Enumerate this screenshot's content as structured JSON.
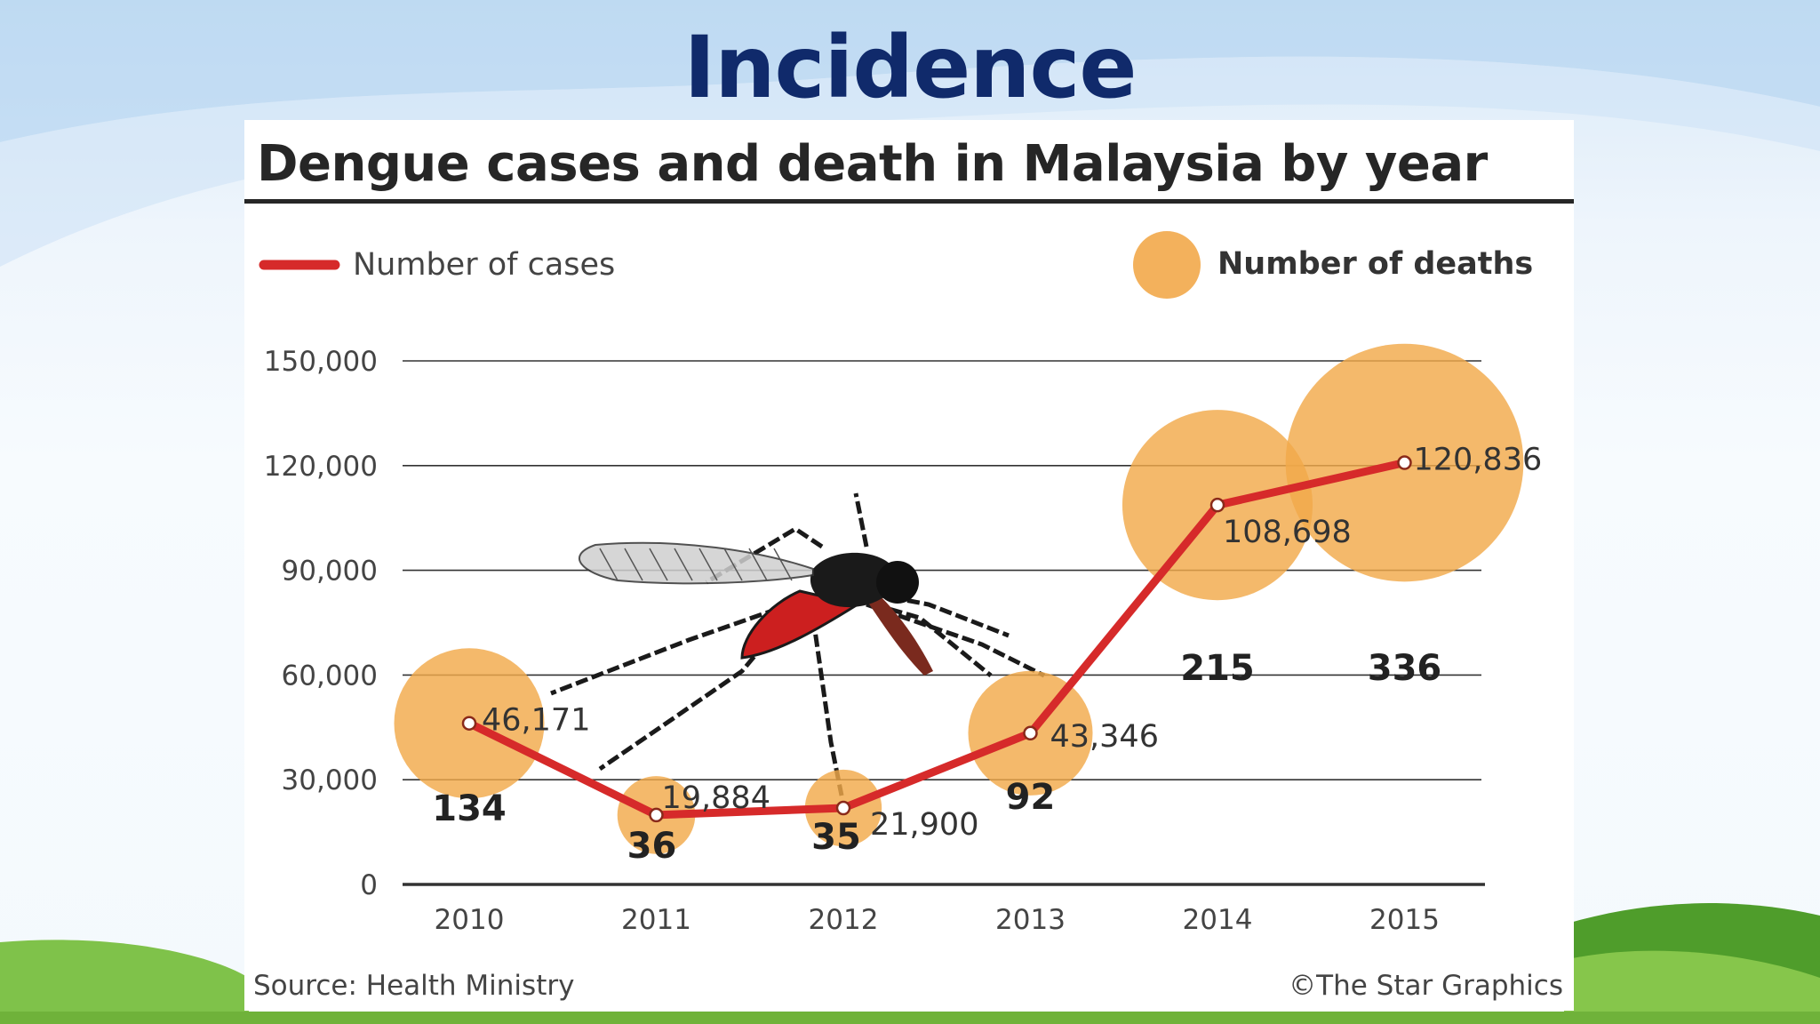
{
  "slide": {
    "title": "Incidence"
  },
  "colors": {
    "title": "#102a6b",
    "cases_line": "#d62a2a",
    "death_bubble": "#f2a94a",
    "grid": "#333333",
    "text": "#333333"
  },
  "chart_data": {
    "type": "line",
    "title": "Dengue cases and death in Malaysia by year",
    "categories": [
      "2010",
      "2011",
      "2012",
      "2013",
      "2014",
      "2015"
    ],
    "series": [
      {
        "name": "Number of cases",
        "type": "line",
        "values": [
          46171,
          19884,
          21900,
          43346,
          108698,
          120836
        ],
        "labels": [
          "46,171",
          "19,884",
          "21,900",
          "43,346",
          "108,698",
          "120,836"
        ]
      },
      {
        "name": "Number of deaths",
        "type": "bubble",
        "values": [
          134,
          36,
          35,
          92,
          215,
          336
        ]
      }
    ],
    "ylim": [
      0,
      150000
    ],
    "yticks": [
      0,
      30000,
      60000,
      90000,
      120000,
      150000
    ],
    "ytick_labels": [
      "0",
      "30,000",
      "60,000",
      "90,000",
      "120,000",
      "150,000"
    ],
    "grid": true,
    "legend": [
      {
        "label": "Number of cases",
        "marker": "line"
      },
      {
        "label": "Number of deaths",
        "marker": "bubble"
      }
    ],
    "legend_position": "top",
    "source": "Source: Health Ministry",
    "credit": "©The Star Graphics"
  }
}
